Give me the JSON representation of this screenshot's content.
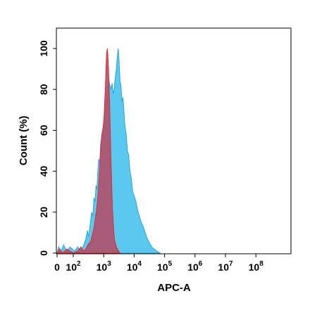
{
  "chart_data": {
    "type": "area",
    "xlabel": "APC-A",
    "ylabel": "Count  (%)",
    "x_scale": "biexponential (0 then log10)",
    "xlim": [
      0,
      100000000
    ],
    "ylim": [
      0,
      110
    ],
    "x_ticks": [
      {
        "base": "0",
        "exp": ""
      },
      {
        "base": "10",
        "exp": "2"
      },
      {
        "base": "10",
        "exp": "3"
      },
      {
        "base": "10",
        "exp": "4"
      },
      {
        "base": "10",
        "exp": "5"
      },
      {
        "base": "10",
        "exp": "6"
      },
      {
        "base": "10",
        "exp": "7"
      },
      {
        "base": "10",
        "exp": "8"
      }
    ],
    "x_tick_values": [
      0,
      100,
      1000,
      10000,
      100000,
      1000000,
      10000000,
      100000000
    ],
    "y_ticks": [
      "0",
      "20",
      "40",
      "60",
      "80",
      "100"
    ],
    "y_tick_values": [
      0,
      20,
      40,
      60,
      80,
      100
    ],
    "grid": false,
    "series": [
      {
        "fill": "#5bc8ef",
        "stroke": "#29a8d8",
        "points": [
          [
            0,
            0
          ],
          [
            10,
            3
          ],
          [
            25,
            1
          ],
          [
            40,
            4
          ],
          [
            60,
            1
          ],
          [
            80,
            3
          ],
          [
            110,
            1
          ],
          [
            140,
            3
          ],
          [
            180,
            1
          ],
          [
            220,
            4
          ],
          [
            260,
            7
          ],
          [
            290,
            11
          ],
          [
            320,
            8
          ],
          [
            360,
            14
          ],
          [
            400,
            20
          ],
          [
            440,
            18
          ],
          [
            480,
            27
          ],
          [
            520,
            25
          ],
          [
            560,
            33
          ],
          [
            600,
            31
          ],
          [
            640,
            40
          ],
          [
            690,
            46
          ],
          [
            740,
            44
          ],
          [
            790,
            53
          ],
          [
            850,
            56
          ],
          [
            910,
            58
          ],
          [
            980,
            63
          ],
          [
            1050,
            66
          ],
          [
            1130,
            70
          ],
          [
            1210,
            74
          ],
          [
            1300,
            78
          ],
          [
            1400,
            82
          ],
          [
            1500,
            84
          ],
          [
            1600,
            82
          ],
          [
            1750,
            80
          ],
          [
            1900,
            83
          ],
          [
            2050,
            78
          ],
          [
            2200,
            80
          ],
          [
            2400,
            86
          ],
          [
            2600,
            90
          ],
          [
            2800,
            96
          ],
          [
            3000,
            100
          ],
          [
            3200,
            94
          ],
          [
            3450,
            84
          ],
          [
            3700,
            82
          ],
          [
            4000,
            74
          ],
          [
            4300,
            76
          ],
          [
            4600,
            70
          ],
          [
            5000,
            62
          ],
          [
            5500,
            58
          ],
          [
            6000,
            50
          ],
          [
            6600,
            48
          ],
          [
            7300,
            40
          ],
          [
            8000,
            37
          ],
          [
            9000,
            30
          ],
          [
            10000,
            28
          ],
          [
            11500,
            25
          ],
          [
            13000,
            21
          ],
          [
            15000,
            18
          ],
          [
            17000,
            15
          ],
          [
            20000,
            13
          ],
          [
            23000,
            10
          ],
          [
            27000,
            7
          ],
          [
            32000,
            5
          ],
          [
            38000,
            3
          ],
          [
            45000,
            2
          ],
          [
            55000,
            1
          ],
          [
            70000,
            0
          ]
        ]
      },
      {
        "fill": "#b0526e",
        "stroke": "#e8262b",
        "points": [
          [
            0,
            0
          ],
          [
            15,
            2
          ],
          [
            35,
            0
          ],
          [
            60,
            2
          ],
          [
            100,
            0
          ],
          [
            140,
            1
          ],
          [
            180,
            3
          ],
          [
            220,
            1
          ],
          [
            260,
            2
          ],
          [
            300,
            4
          ],
          [
            340,
            5
          ],
          [
            380,
            6
          ],
          [
            420,
            9
          ],
          [
            460,
            11
          ],
          [
            500,
            14
          ],
          [
            540,
            18
          ],
          [
            580,
            21
          ],
          [
            620,
            25
          ],
          [
            660,
            30
          ],
          [
            700,
            36
          ],
          [
            740,
            42
          ],
          [
            780,
            48
          ],
          [
            820,
            54
          ],
          [
            870,
            58
          ],
          [
            920,
            60
          ],
          [
            970,
            62
          ],
          [
            1020,
            66
          ],
          [
            1080,
            74
          ],
          [
            1140,
            82
          ],
          [
            1200,
            92
          ],
          [
            1260,
            98
          ],
          [
            1320,
            100
          ],
          [
            1380,
            96
          ],
          [
            1440,
            90
          ],
          [
            1500,
            82
          ],
          [
            1570,
            72
          ],
          [
            1640,
            60
          ],
          [
            1710,
            48
          ],
          [
            1780,
            40
          ],
          [
            1860,
            30
          ],
          [
            1940,
            22
          ],
          [
            2030,
            16
          ],
          [
            2130,
            11
          ],
          [
            2250,
            7
          ],
          [
            2400,
            5
          ],
          [
            2600,
            3
          ],
          [
            2850,
            2
          ],
          [
            3100,
            1
          ],
          [
            3400,
            0
          ]
        ]
      }
    ]
  }
}
